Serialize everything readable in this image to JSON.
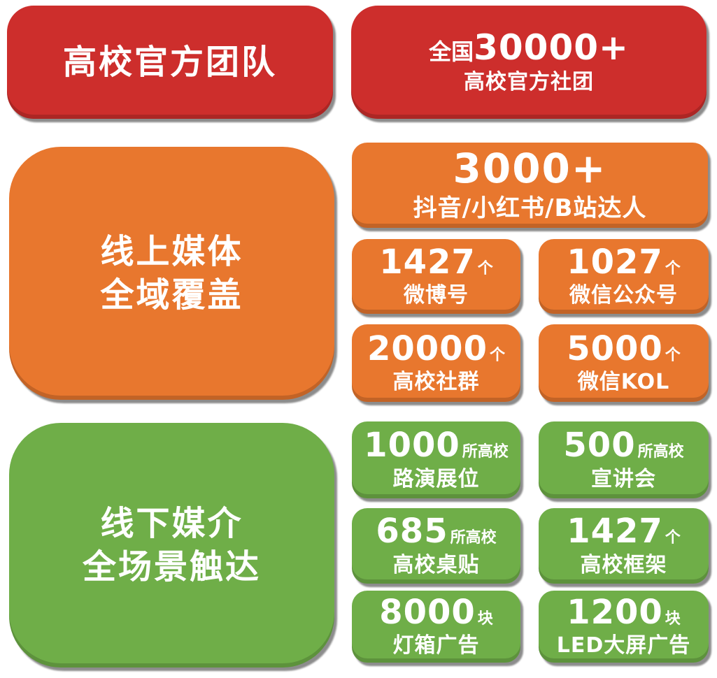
{
  "colors": {
    "red": "#cd2e2c",
    "orange": "#e8772e",
    "green": "#6fae48",
    "text": "#ffffff"
  },
  "official": {
    "headline": "高校官方团队",
    "stat": {
      "prefix": "全国",
      "number": "30000+",
      "label": "高校官方社团"
    }
  },
  "online": {
    "headline": [
      "线上媒体",
      "全域覆盖"
    ],
    "hero": {
      "number": "3000+",
      "label": "抖音/小红书/B站达人"
    },
    "stats": [
      {
        "number": "1427",
        "suffix": "个",
        "label": "微博号"
      },
      {
        "number": "1027",
        "suffix": "个",
        "label": "微信公众号"
      },
      {
        "number": "20000",
        "suffix": "个",
        "label": "高校社群"
      },
      {
        "number": "5000",
        "suffix": "个",
        "label": "微信KOL"
      }
    ]
  },
  "offline": {
    "headline": [
      "线下媒介",
      "全场景触达"
    ],
    "stats": [
      {
        "number": "1000",
        "suffix": "所高校",
        "label": "路演展位"
      },
      {
        "number": "500",
        "suffix": "所高校",
        "label": "宣讲会"
      },
      {
        "number": "685",
        "suffix": "所高校",
        "label": "高校桌贴"
      },
      {
        "number": "1427",
        "suffix": "个",
        "label": "高校框架"
      },
      {
        "number": "8000",
        "suffix": "块",
        "label": "灯箱广告"
      },
      {
        "number": "1200",
        "suffix": "块",
        "label": "LED大屏广告"
      }
    ]
  }
}
